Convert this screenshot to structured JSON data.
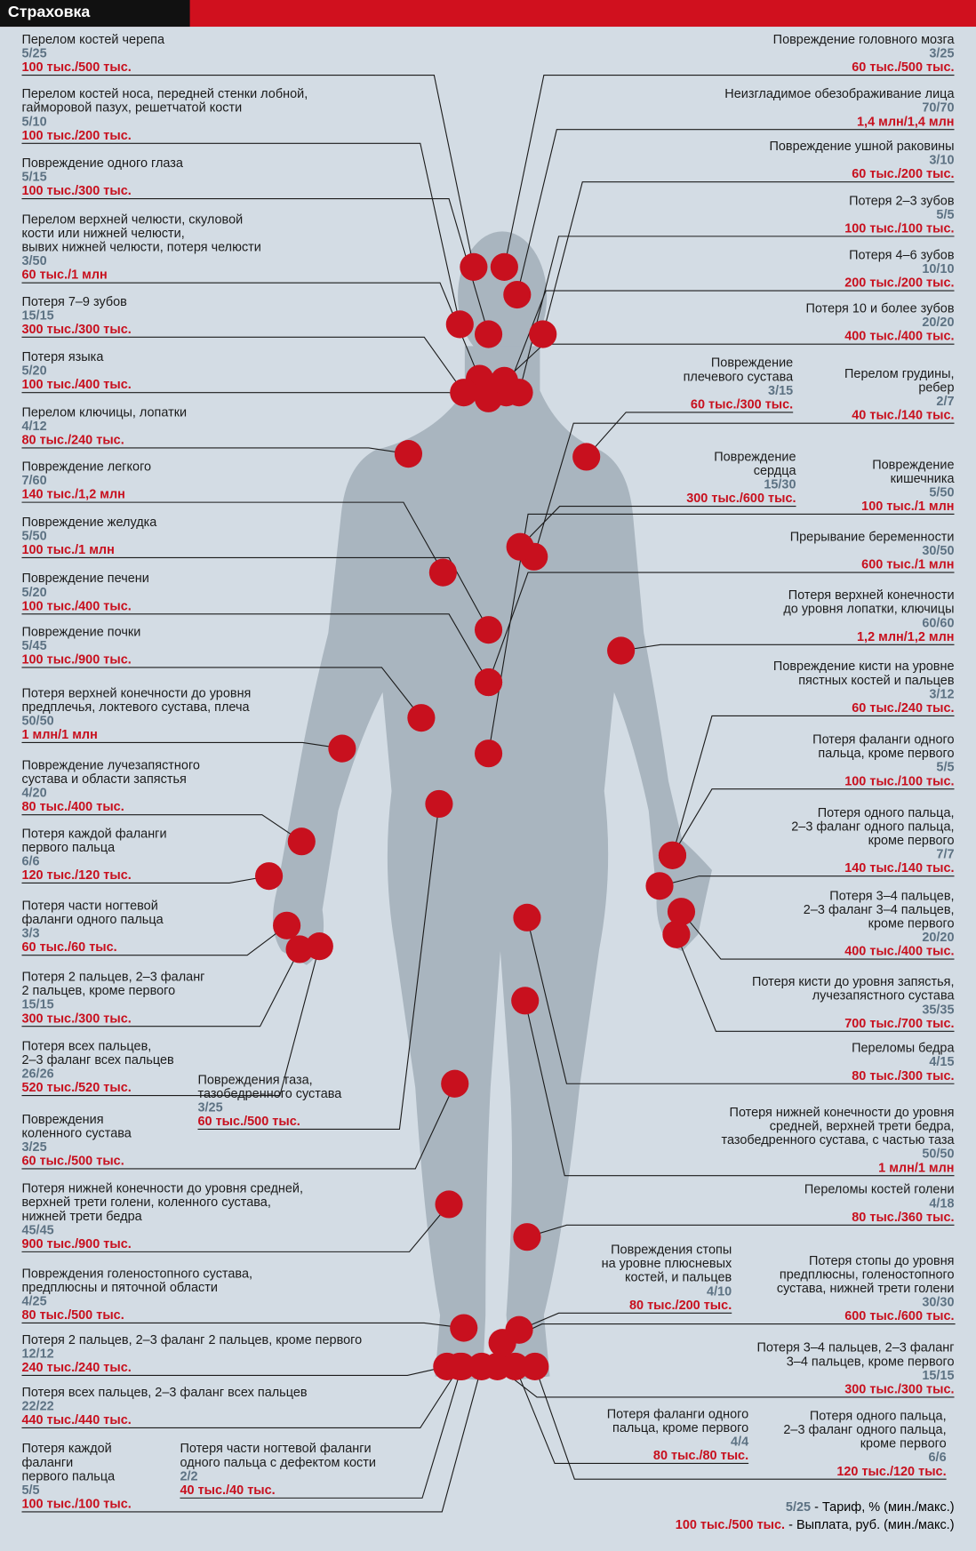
{
  "header": {
    "title": "Страховка"
  },
  "items": [
    {
      "name": "Перелом костей черепа",
      "rate": "5/25",
      "payout": "100 тыс./500 тыс."
    },
    {
      "name": "Перелом костей носа, передней стенки лобной,\nгайморовой пазух, решетчатой кости",
      "rate": "5/10",
      "payout": "100 тыс./200 тыс."
    },
    {
      "name": "Повреждение одного глаза",
      "rate": "5/15",
      "payout": "100 тыс./300 тыс."
    },
    {
      "name": "Перелом верхней челюсти, скуловой\nкости или нижней челюсти,\nвывих нижней челюсти, потеря челюсти",
      "rate": "3/50",
      "payout": "60 тыс./1 млн"
    },
    {
      "name": "Потеря 7–9 зубов",
      "rate": "15/15",
      "payout": "300 тыс./300 тыс."
    },
    {
      "name": "Потеря языка",
      "rate": "5/20",
      "payout": "100 тыс./400 тыс."
    },
    {
      "name": "Перелом ключицы, лопатки",
      "rate": "4/12",
      "payout": "80 тыс./240 тыс."
    },
    {
      "name": "Повреждение легкого",
      "rate": "7/60",
      "payout": "140 тыс./1,2 млн"
    },
    {
      "name": "Повреждение желудка",
      "rate": "5/50",
      "payout": "100 тыс./1 млн"
    },
    {
      "name": "Повреждение печени",
      "rate": "5/20",
      "payout": "100 тыс./400 тыс."
    },
    {
      "name": "Повреждение почки",
      "rate": "5/45",
      "payout": "100 тыс./900 тыс."
    },
    {
      "name": "Потеря верхней конечности до уровня\nпредплечья, локтевого сустава, плеча",
      "rate": "50/50",
      "payout": "1 млн/1 млн"
    },
    {
      "name": "Повреждение лучезапястного\nсустава и области запястья",
      "rate": "4/20",
      "payout": "80 тыс./400 тыс."
    },
    {
      "name": "Потеря каждой фаланги\nпервого пальца",
      "rate": "6/6",
      "payout": "120 тыс./120 тыс."
    },
    {
      "name": "Потеря части ногтевой\nфаланги одного пальца",
      "rate": "3/3",
      "payout": "60 тыс./60 тыс."
    },
    {
      "name": "Потеря 2 пальцев, 2–3 фаланг\n2 пальцев, кроме первого",
      "rate": "15/15",
      "payout": "300 тыс./300 тыс."
    },
    {
      "name": "Потеря всех пальцев,\n2–3 фаланг всех пальцев",
      "rate": "26/26",
      "payout": "520 тыс./520 тыс."
    },
    {
      "name": "Повреждения таза,\nтазобедренного сустава",
      "rate": "3/25",
      "payout": "60 тыс./500 тыс."
    },
    {
      "name": "Повреждения\nколенного сустава",
      "rate": "3/25",
      "payout": "60 тыс./500 тыс."
    },
    {
      "name": "Потеря нижней конечности до уровня средней,\nверхней трети голени, коленного сустава,\nнижней трети бедра",
      "rate": "45/45",
      "payout": "900 тыс./900 тыс."
    },
    {
      "name": "Повреждения голеностопного сустава,\nпредплюсны и пяточной области",
      "rate": "4/25",
      "payout": "80 тыс./500 тыс."
    },
    {
      "name": "Потеря 2 пальцев, 2–3 фаланг 2 пальцев, кроме первого",
      "rate": "12/12",
      "payout": "240 тыс./240 тыс."
    },
    {
      "name": "Потеря всех пальцев, 2–3 фаланг всех пальцев",
      "rate": "22/22",
      "payout": "440 тыс./440 тыс."
    },
    {
      "name": "Потеря каждой\nфаланги\nпервого пальца",
      "rate": "5/5",
      "payout": "100 тыс./100 тыс."
    },
    {
      "name": "Потеря части ногтевой фаланги\nодного пальца с дефектом кости",
      "rate": "2/2",
      "payout": "40 тыс./40 тыс."
    },
    {
      "name": "Повреждение головного мозга",
      "rate": "3/25",
      "payout": "60 тыс./500 тыс."
    },
    {
      "name": "Неизгладимое обезображивание лица",
      "rate": "70/70",
      "payout": "1,4 млн/1,4 млн"
    },
    {
      "name": "Повреждение ушной раковины",
      "rate": "3/10",
      "payout": "60 тыс./200 тыс."
    },
    {
      "name": "Потеря 2–3 зубов",
      "rate": "5/5",
      "payout": "100 тыс./100 тыс."
    },
    {
      "name": "Потеря 4–6 зубов",
      "rate": "10/10",
      "payout": "200 тыс./200 тыс."
    },
    {
      "name": "Потеря 10 и более зубов",
      "rate": "20/20",
      "payout": "400 тыс./400 тыс."
    },
    {
      "name": "Повреждение\nплечевого сустава",
      "rate": "3/15",
      "payout": "60 тыс./300 тыс."
    },
    {
      "name": "Перелом грудины,\nребер",
      "rate": "2/7",
      "payout": "40 тыс./140 тыс."
    },
    {
      "name": "Повреждение\nсердца",
      "rate": "15/30",
      "payout": "300 тыс./600 тыс."
    },
    {
      "name": "Повреждение\nкишечника",
      "rate": "5/50",
      "payout": "100 тыс./1 млн"
    },
    {
      "name": "Прерывание беременности",
      "rate": "30/50",
      "payout": "600 тыс./1 млн"
    },
    {
      "name": "Потеря верхней конечности\nдо уровня лопатки, ключицы",
      "rate": "60/60",
      "payout": "1,2 млн/1,2 млн"
    },
    {
      "name": "Повреждение кисти на уровне\nпястных костей и пальцев",
      "rate": "3/12",
      "payout": "60 тыс./240 тыс."
    },
    {
      "name": "Потеря фаланги одного\nпальца, кроме первого",
      "rate": "5/5",
      "payout": "100 тыс./100 тыс."
    },
    {
      "name": "Потеря одного пальца,\n2–3 фаланг одного пальца,\nкроме первого",
      "rate": "7/7",
      "payout": "140 тыс./140 тыс."
    },
    {
      "name": "Потеря 3–4 пальцев,\n2–3 фаланг 3–4 пальцев,\nкроме первого",
      "rate": "20/20",
      "payout": "400 тыс./400 тыс."
    },
    {
      "name": "Потеря кисти до уровня запястья,\nлучезапястного сустава",
      "rate": "35/35",
      "payout": "700 тыс./700 тыс."
    },
    {
      "name": "Переломы бедра",
      "rate": "4/15",
      "payout": "80 тыс./300 тыс."
    },
    {
      "name": "Потеря нижней конечности до уровня\nсредней, верхней трети бедра,\nтазобедренного сустава, с частью таза",
      "rate": "50/50",
      "payout": "1 млн/1 млн"
    },
    {
      "name": "Переломы костей голени",
      "rate": "4/18",
      "payout": "80 тыс./360 тыс."
    },
    {
      "name": "Повреждения стопы\nна уровне плюсневых\nкостей, и пальцев",
      "rate": "4/10",
      "payout": "80 тыс./200 тыс."
    },
    {
      "name": "Потеря стопы до уровня\nпредплюсны, голеностопного\nсустава, нижней трети голени",
      "rate": "30/30",
      "payout": "600 тыс./600 тыс."
    },
    {
      "name": "Потеря 3–4 пальцев, 2–3 фаланг\n3–4 пальцев, кроме первого",
      "rate": "15/15",
      "payout": "300 тыс./300 тыс."
    },
    {
      "name": "Потеря  фаланги одного\nпальца, кроме первого",
      "rate": "4/4",
      "payout": "80 тыс./80 тыс."
    },
    {
      "name": "Потеря одного пальца,\n2–3 фаланг одного пальца,\nкроме первого",
      "rate": "6/6",
      "payout": "120 тыс./120 тыс."
    }
  ],
  "legend": {
    "rate": "5/25",
    "rate_label": "- Тариф, % (мин./макс.)",
    "payout": "100 тыс./500 тыс.",
    "payout_label": "- Выплата, руб. (мин./макс.)"
  }
}
